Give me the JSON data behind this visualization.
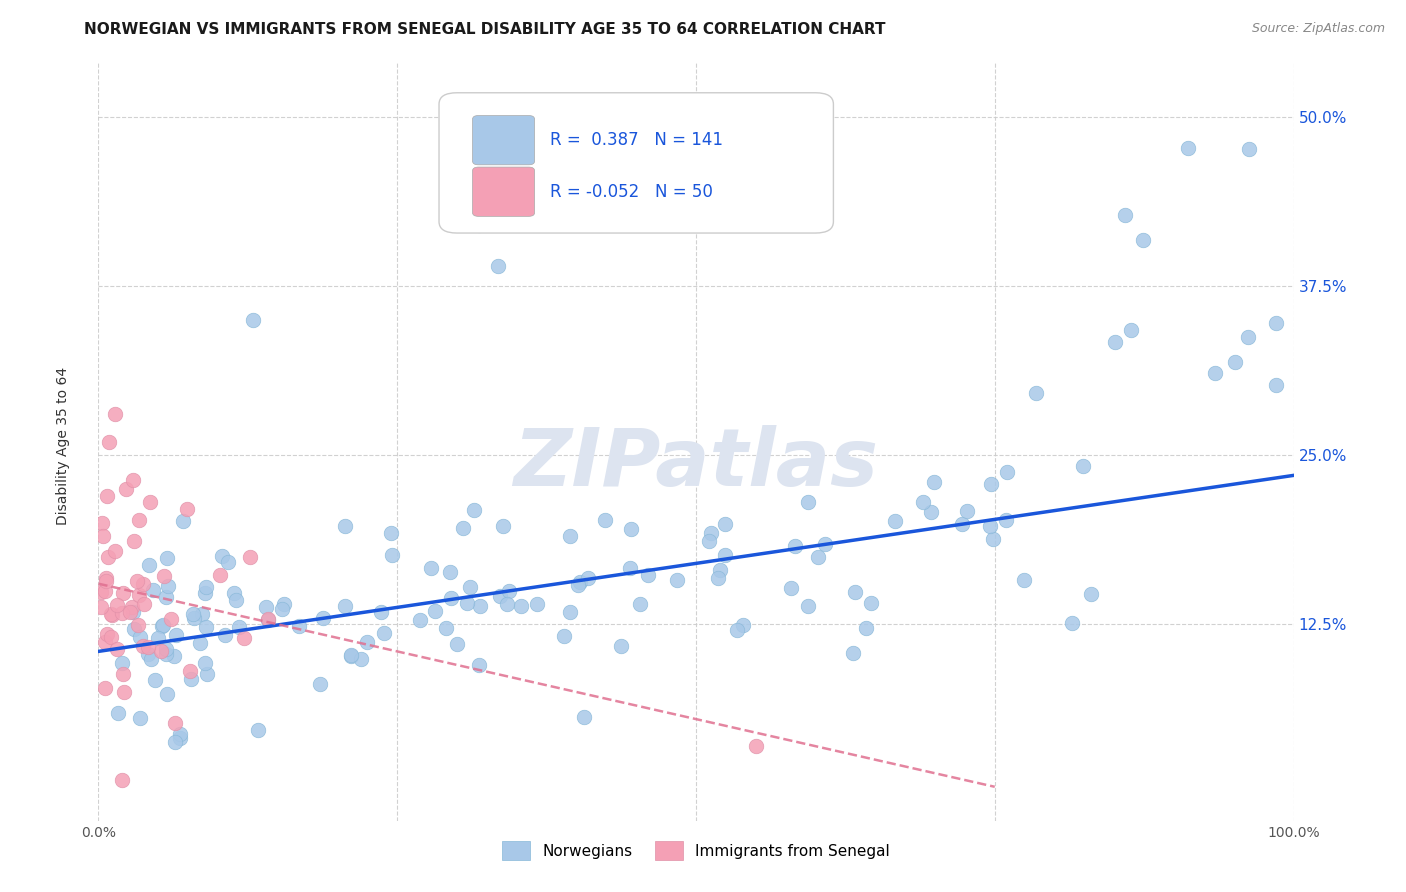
{
  "title": "NORWEGIAN VS IMMIGRANTS FROM SENEGAL DISABILITY AGE 35 TO 64 CORRELATION CHART",
  "source": "Source: ZipAtlas.com",
  "ylabel": "Disability Age 35 to 64",
  "xlim": [
    0.0,
    1.0
  ],
  "ylim": [
    -0.02,
    0.54
  ],
  "ytick_positions": [
    0.125,
    0.25,
    0.375,
    0.5
  ],
  "ytick_labels": [
    "12.5%",
    "25.0%",
    "37.5%",
    "50.0%"
  ],
  "norwegian_R": 0.387,
  "norwegian_N": 141,
  "senegal_R": -0.052,
  "senegal_N": 50,
  "blue_scatter_color": "#a8c8e8",
  "blue_line_color": "#1a56db",
  "pink_scatter_color": "#f4a0b5",
  "pink_line_color": "#e07090",
  "background_color": "#ffffff",
  "grid_color": "#cccccc",
  "title_fontsize": 11,
  "watermark_color": "#dde4f0",
  "legend_color": "#1a56db",
  "nor_line_x0": 0.0,
  "nor_line_y0": 0.105,
  "nor_line_x1": 1.0,
  "nor_line_y1": 0.235,
  "sen_line_x0": 0.0,
  "sen_line_y0": 0.155,
  "sen_line_x1": 0.75,
  "sen_line_y1": 0.005
}
